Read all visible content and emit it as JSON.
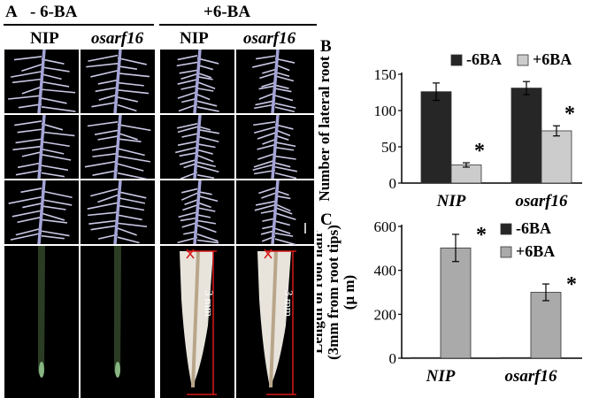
{
  "panel_a": {
    "letter": "A",
    "group_minus": "- 6-BA",
    "group_plus": "+6-BA",
    "col_labels": [
      "NIP",
      "osarf16",
      "NIP",
      "osarf16"
    ],
    "scale_label": "3 mm",
    "colors": {
      "photo_bg": "#000000",
      "root": "#c9c9e6",
      "hair_bright": "#e8e4dc",
      "scale_line": "#d81818"
    }
  },
  "chart_data": [
    {
      "panel": "B",
      "type": "bar",
      "categories": [
        "NIP",
        "osarf16"
      ],
      "series": [
        {
          "name": "-6BA",
          "values": [
            126,
            131
          ],
          "errors": [
            12,
            9
          ],
          "color": "#262626"
        },
        {
          "name": "+6BA",
          "values": [
            25,
            72
          ],
          "errors": [
            3,
            7
          ],
          "color": "#cccccc",
          "significance": [
            "*",
            "*"
          ]
        }
      ],
      "ylabel": "Number of lateral root",
      "ylim": [
        0,
        150
      ],
      "yticks": [
        0,
        50,
        100,
        150
      ],
      "legend": "top"
    },
    {
      "panel": "C",
      "type": "bar",
      "categories": [
        "NIP",
        "osarf16"
      ],
      "series": [
        {
          "name": "-6BA",
          "values": [
            3,
            3
          ],
          "errors": [
            0,
            0
          ],
          "color": "#262626"
        },
        {
          "name": "+6BA",
          "values": [
            502,
            300
          ],
          "errors": [
            62,
            38
          ],
          "color": "#aaaaaa",
          "significance": [
            "*",
            "*"
          ]
        }
      ],
      "ylabel": "Length of root hair (3mm from root tips) (μ m)",
      "ylabel_lines": [
        "Length of root hair",
        "(3mm from root tips)",
        "(μ m)"
      ],
      "ylim": [
        0,
        600
      ],
      "yticks": [
        0,
        200,
        400,
        600
      ],
      "legend": "right"
    }
  ]
}
